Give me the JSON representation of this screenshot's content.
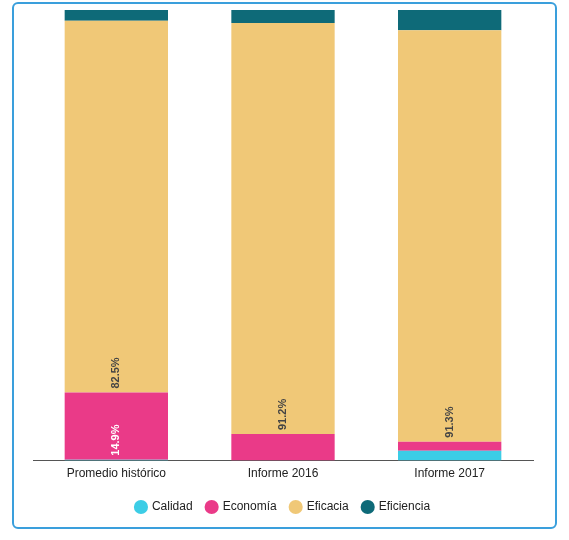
{
  "chart_data": {
    "type": "bar",
    "stacked": true,
    "categories": [
      "Promedio histórico",
      "Informe 2016",
      "Informe 2017"
    ],
    "series": [
      {
        "name": "Calidad",
        "color": "#3ccde6",
        "values": [
          0.2,
          0,
          2.2
        ]
      },
      {
        "name": "Economía",
        "color": "#ea3a88",
        "values": [
          14.9,
          5.9,
          2.0
        ],
        "value_labels": [
          "14.9%",
          null,
          null
        ]
      },
      {
        "name": "Eficacia",
        "color": "#f0c877",
        "values": [
          82.5,
          91.2,
          91.3
        ],
        "value_labels": [
          "82.5%",
          "91.2%",
          "91.3%"
        ]
      },
      {
        "name": "Eficiencia",
        "color": "#0e6a78",
        "values": [
          2.4,
          2.9,
          4.5
        ]
      }
    ],
    "ylim": [
      0,
      100
    ],
    "grid": false,
    "legend": "bottom",
    "tick_labels": "x",
    "data_labels": true
  }
}
